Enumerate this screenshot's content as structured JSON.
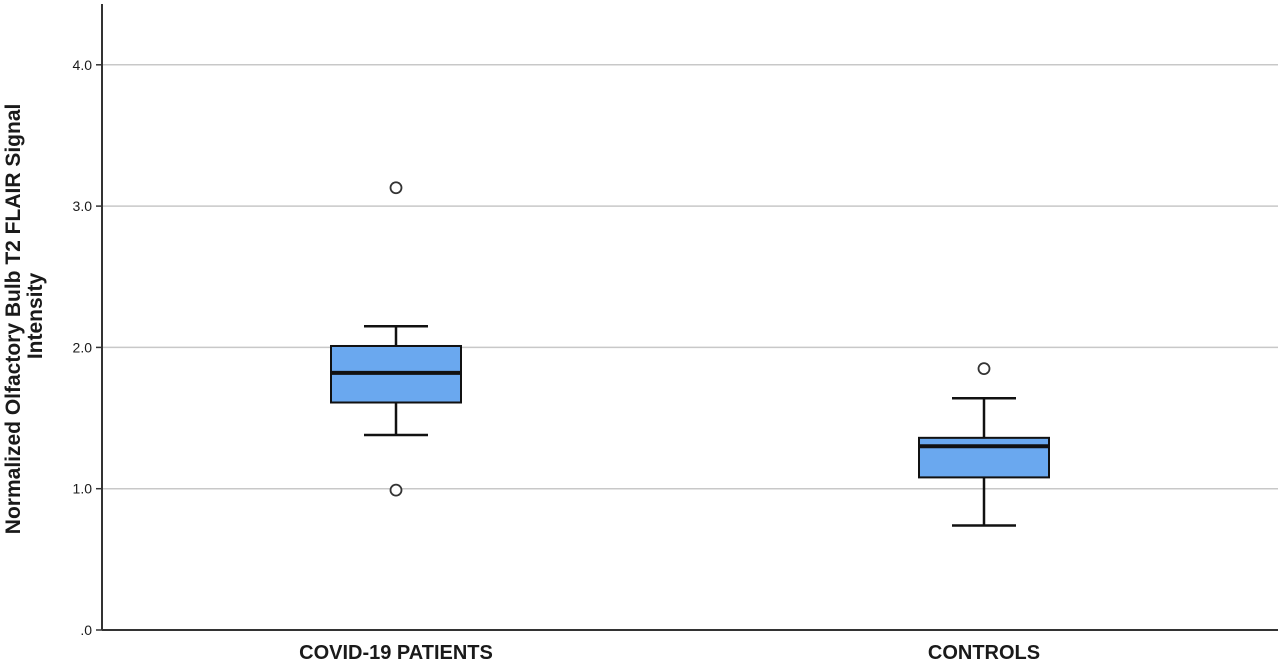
{
  "chart_data": {
    "type": "box",
    "title": "",
    "xlabel": "",
    "ylabel": [
      "Normalized Olfactory Bulb T2 FLAIR Signal",
      "Intensity"
    ],
    "ylim": [
      0,
      4.4
    ],
    "yticks": [
      0,
      1,
      2,
      3,
      4
    ],
    "ytick_labels": [
      ".0",
      "1.0",
      "2.0",
      "3.0",
      "4.0"
    ],
    "grid": true,
    "box_color": "#6aa8ef",
    "categories": [
      "COVID-19 PATIENTS",
      "CONTROLS"
    ],
    "boxes": [
      {
        "category": "COVID-19 PATIENTS",
        "whisker_low": 1.38,
        "q1": 1.61,
        "median": 1.82,
        "q3": 2.01,
        "whisker_high": 2.15,
        "outliers": [
          3.13,
          0.99
        ]
      },
      {
        "category": "CONTROLS",
        "whisker_low": 0.74,
        "q1": 1.08,
        "median": 1.3,
        "q3": 1.36,
        "whisker_high": 1.64,
        "outliers": [
          1.85
        ]
      }
    ]
  }
}
